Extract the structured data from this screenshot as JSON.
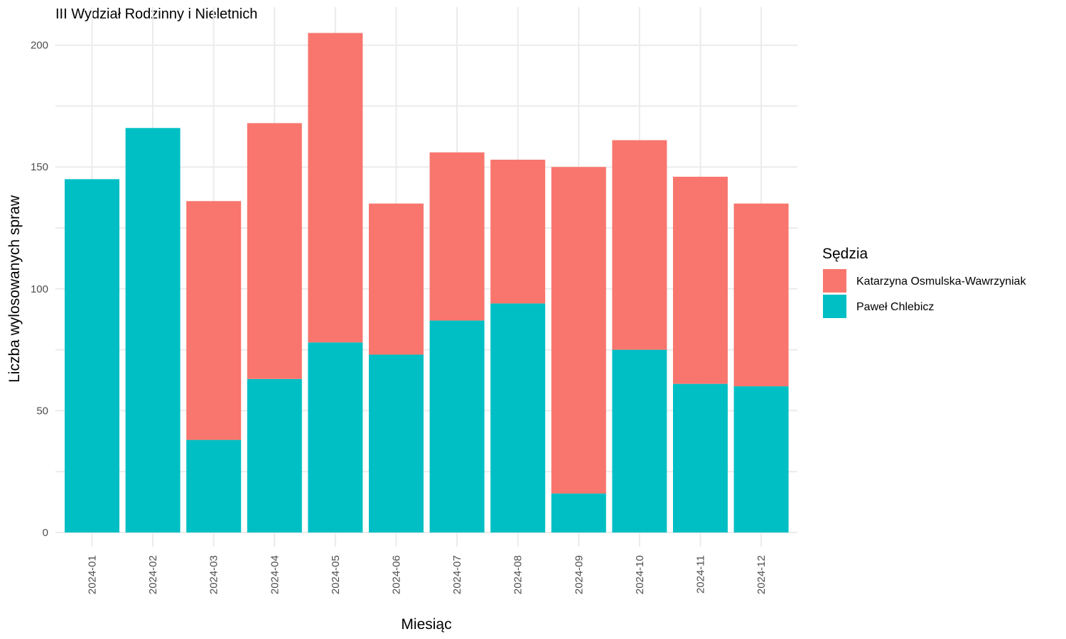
{
  "chart_data": {
    "type": "bar",
    "stacked": true,
    "title": "III Wydział Rodzinny i Nieletnich",
    "xlabel": "Miesiąc",
    "ylabel": "Liczba wylosowanych spraw",
    "ylim": [
      0,
      210
    ],
    "yticks": [
      0,
      50,
      100,
      150,
      200
    ],
    "grid": true,
    "legend": {
      "title": "Sędzia",
      "position": "right"
    },
    "categories": [
      "2024-01",
      "2024-02",
      "2024-03",
      "2024-04",
      "2024-05",
      "2024-06",
      "2024-07",
      "2024-08",
      "2024-09",
      "2024-10",
      "2024-11",
      "2024-12"
    ],
    "series": [
      {
        "name": "Paweł Chlebicz",
        "color": "#00BFC4",
        "values": [
          145,
          166,
          38,
          63,
          78,
          73,
          87,
          94,
          16,
          75,
          61,
          60
        ]
      },
      {
        "name": "Katarzyna Osmulska-Wawrzyniak",
        "color": "#F8766D",
        "values": [
          0,
          0,
          98,
          105,
          127,
          62,
          69,
          59,
          134,
          86,
          85,
          75
        ]
      }
    ],
    "legend_order": [
      "Katarzyna Osmulska-Wawrzyniak",
      "Paweł Chlebicz"
    ]
  }
}
